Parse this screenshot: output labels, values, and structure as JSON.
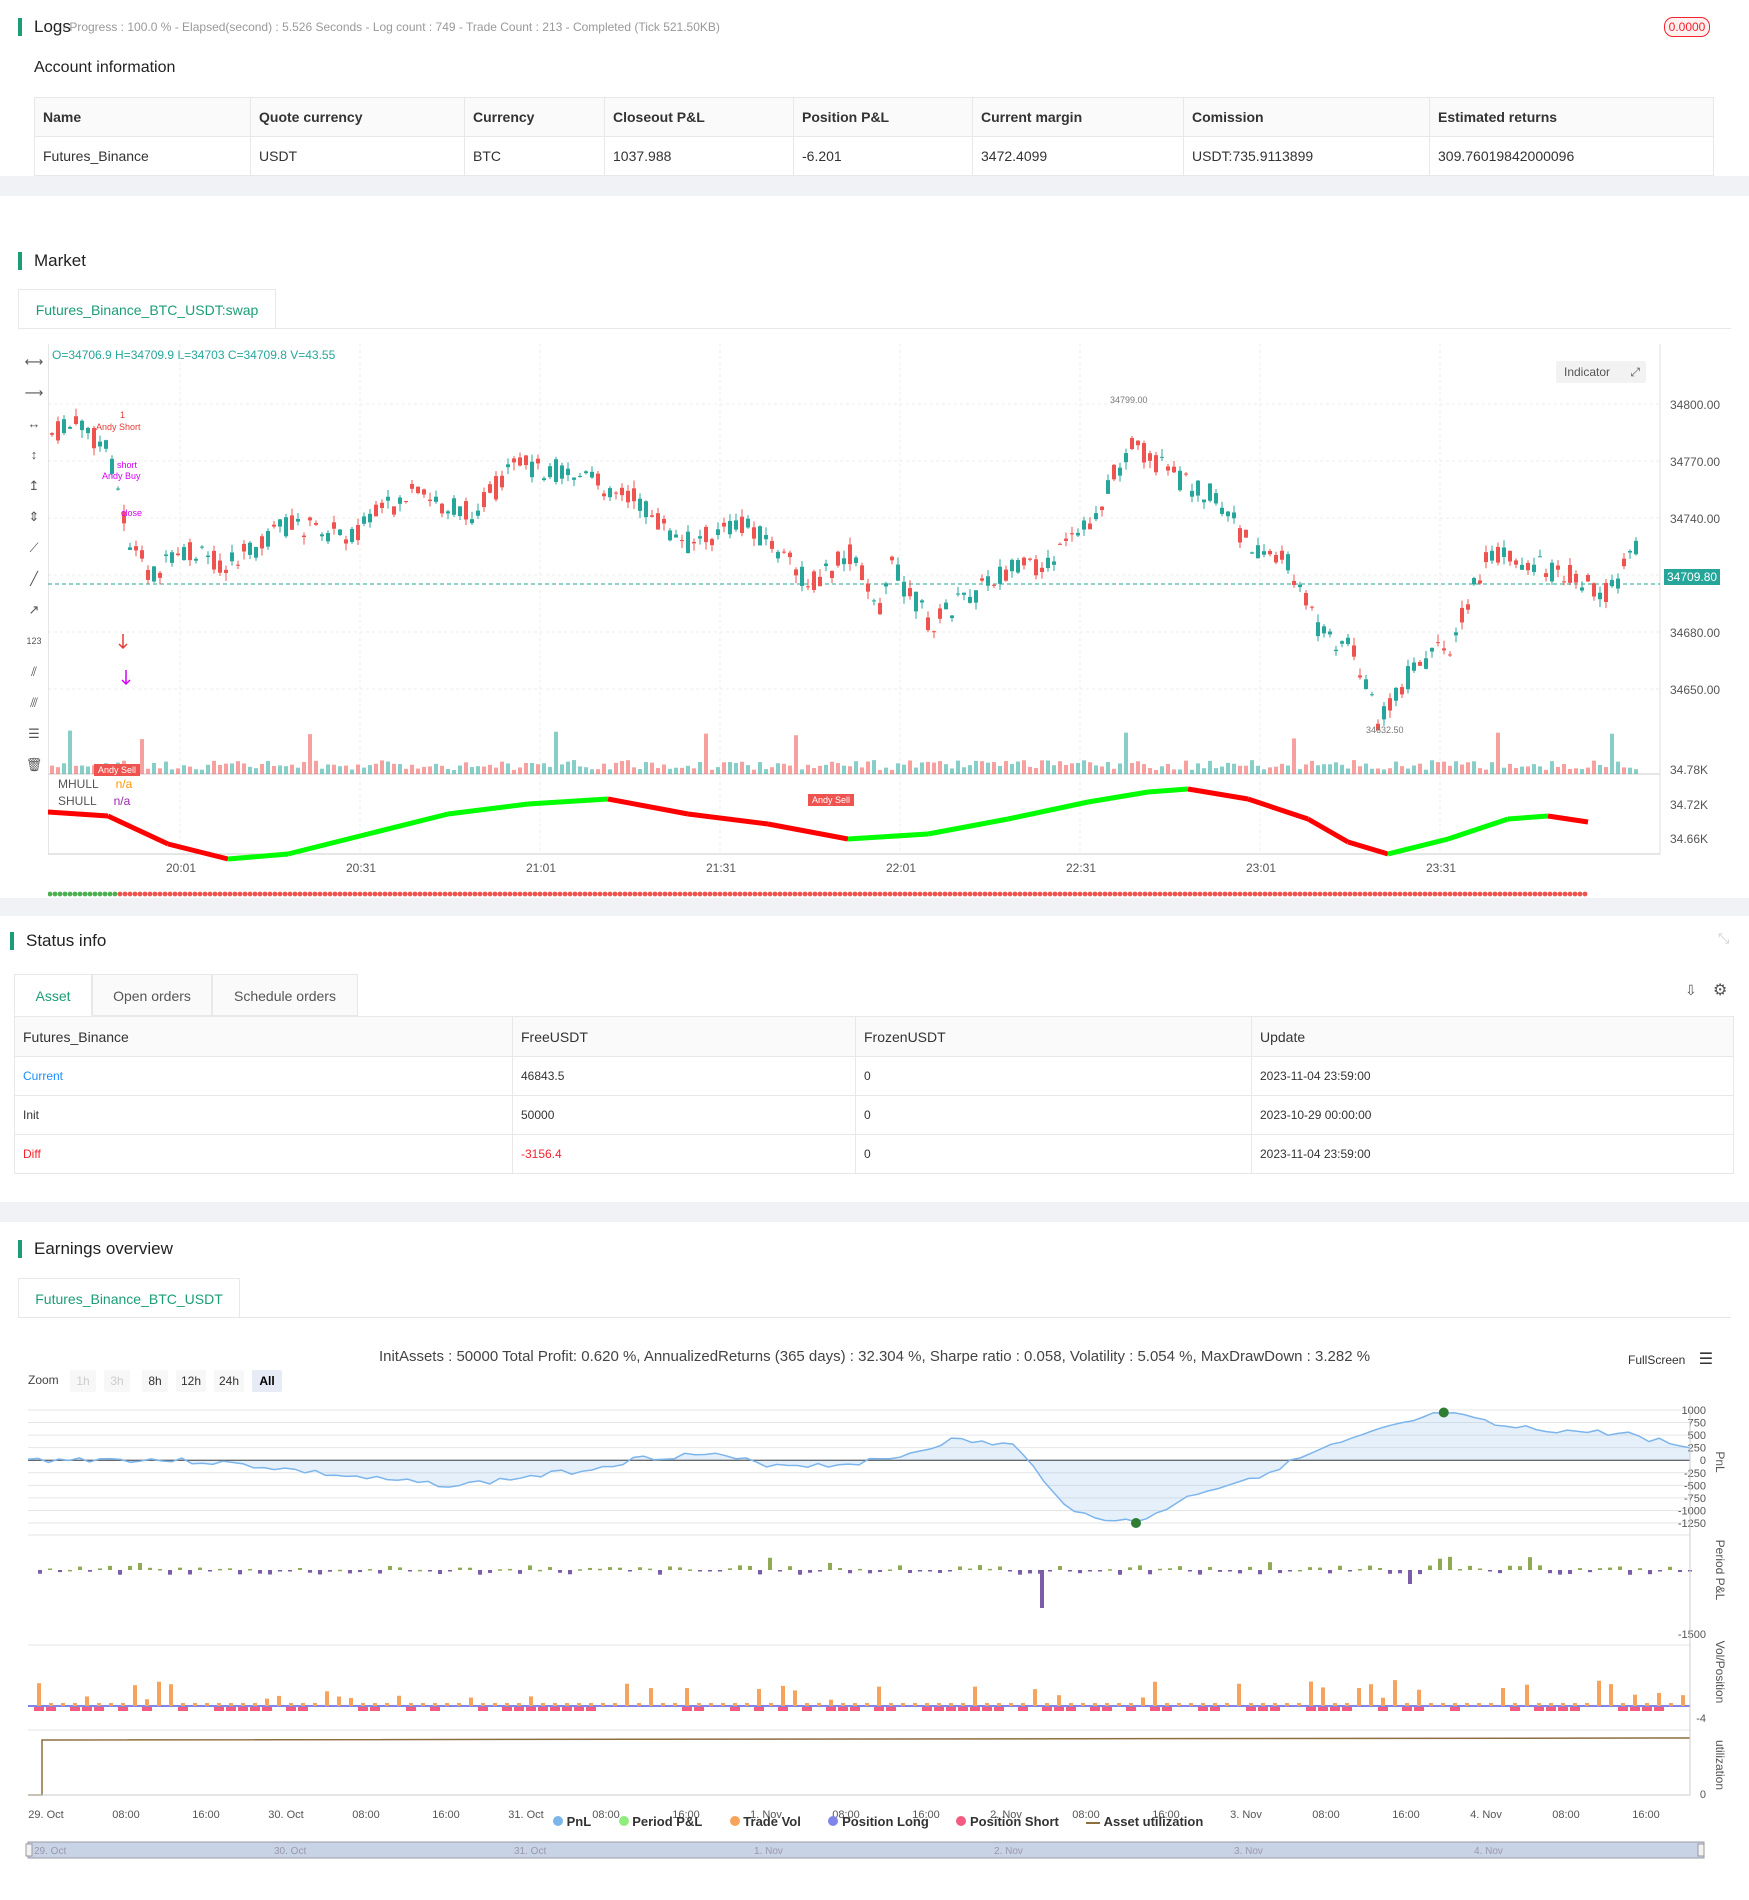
{
  "logs": {
    "title": "Logs",
    "status": "- Progress : 100.0 % - Elapsed(second) : 5.526  Seconds - Log count : 749 - Trade Count : 213 - Completed (Tick 521.50KB)",
    "badge": "0.0000",
    "account_title": "Account information",
    "headers": [
      "Name",
      "Quote currency",
      "Currency",
      "Closeout P&L",
      "Position P&L",
      "Current margin",
      "Comission",
      "Estimated returns"
    ],
    "row": [
      "Futures_Binance",
      "USDT",
      "BTC",
      "1037.988",
      "-6.201",
      "3472.4099",
      "USDT:735.9113899",
      "309.76019842000096"
    ]
  },
  "market": {
    "title": "Market",
    "tab": "Futures_Binance_BTC_USDT:swap",
    "ohlc": "O=34706.9 H=34709.9 L=34703 C=34709.8 V=43.55",
    "indicator_btn": "Indicator",
    "price_ticks": [
      "34800.00",
      "34770.00",
      "34740.00",
      "34680.00",
      "34650.00"
    ],
    "current_price": "34709.80",
    "high_marker": "34799.00",
    "low_marker": "34632.50",
    "ind_ticks": [
      "34.78K",
      "34.72K",
      "34.66K"
    ],
    "time_ticks": [
      "20:01",
      "20:31",
      "21:01",
      "21:31",
      "22:01",
      "22:31",
      "23:01",
      "23:31"
    ],
    "legend": [
      {
        "name": "MHULL",
        "value": "n/a"
      },
      {
        "name": "SHULL",
        "value": "n/a"
      }
    ],
    "signals": {
      "andy_short_num": "1",
      "andy_short": "Andy Short",
      "short": "short",
      "andy_buy": "Andy Buy",
      "close": "close",
      "andy_sell": "Andy Sell"
    },
    "colors": {
      "up": "#26a69a",
      "down": "#ef5350",
      "hull_up": "#00ff00",
      "hull_down": "#ff0000"
    }
  },
  "status": {
    "title": "Status info",
    "tabs": [
      "Asset",
      "Open orders",
      "Schedule orders"
    ],
    "headers": [
      "Futures_Binance",
      "FreeUSDT",
      "FrozenUSDT",
      "Update"
    ],
    "rows": [
      {
        "label": "Current",
        "free": "46843.5",
        "frozen": "0",
        "update": "2023-11-04 23:59:00"
      },
      {
        "label": "Init",
        "free": "50000",
        "frozen": "0",
        "update": "2023-10-29 00:00:00"
      },
      {
        "label": "Diff",
        "free": "-3156.4",
        "frozen": "0",
        "update": "2023-11-04 23:59:00"
      }
    ]
  },
  "earnings": {
    "title": "Earnings overview",
    "tab": "Futures_Binance_BTC_USDT",
    "summary": "InitAssets : 50000 Total Profit: 0.620 %, AnnualizedReturns (365 days) : 32.304 %, Sharpe ratio : 0.058, Volatility : 5.054 %, MaxDrawDown : 3.282 %",
    "fullscreen": "FullScreen",
    "zoom_label": "Zoom",
    "zoom_buttons": [
      "1h",
      "3h",
      "8h",
      "12h",
      "24h",
      "All"
    ],
    "pnl_ticks": [
      "1000",
      "750",
      "500",
      "250",
      "0",
      "-250",
      "-500",
      "-750",
      "-1000",
      "-1250"
    ],
    "period_tick": "-1500",
    "vol_tick": "-4",
    "util_tick": "0",
    "axis_titles": [
      "PnL",
      "Period P&L",
      "Vol/Position",
      "utilization"
    ],
    "x_ticks": [
      "29. Oct",
      "08:00",
      "16:00",
      "30. Oct",
      "08:00",
      "16:00",
      "31. Oct",
      "08:00",
      "16:00",
      "1. Nov",
      "08:00",
      "16:00",
      "2. Nov",
      "08:00",
      "16:00",
      "3. Nov",
      "08:00",
      "16:00",
      "4. Nov",
      "08:00",
      "16:00"
    ],
    "nav_ticks": [
      "29. Oct",
      "30. Oct",
      "31. Oct",
      "1. Nov",
      "2. Nov",
      "3. Nov",
      "4. Nov"
    ],
    "legend": [
      {
        "name": "PnL",
        "color": "#7cb5ec"
      },
      {
        "name": "Period P&L",
        "color": "#90ed7d"
      },
      {
        "name": "Trade Vol",
        "color": "#f7a35c"
      },
      {
        "name": "Position Long",
        "color": "#8085e9"
      },
      {
        "name": "Position Short",
        "color": "#f15c80"
      },
      {
        "name": "Asset utilization",
        "color": "#8d6e3f"
      }
    ]
  },
  "chart_data": {
    "type": "line",
    "title": "",
    "xlabel": "",
    "ylabel": "PnL",
    "ylim": [
      -1250,
      1000
    ],
    "series": [
      {
        "name": "PnL",
        "values": [
          0,
          20,
          10,
          -40,
          -150,
          -300,
          -420,
          -500,
          -350,
          -200,
          50,
          120,
          -80,
          -100,
          20,
          400,
          300,
          -1050,
          -1250,
          -650,
          -300,
          200,
          600,
          950,
          650,
          580,
          520,
          250
        ]
      }
    ]
  }
}
